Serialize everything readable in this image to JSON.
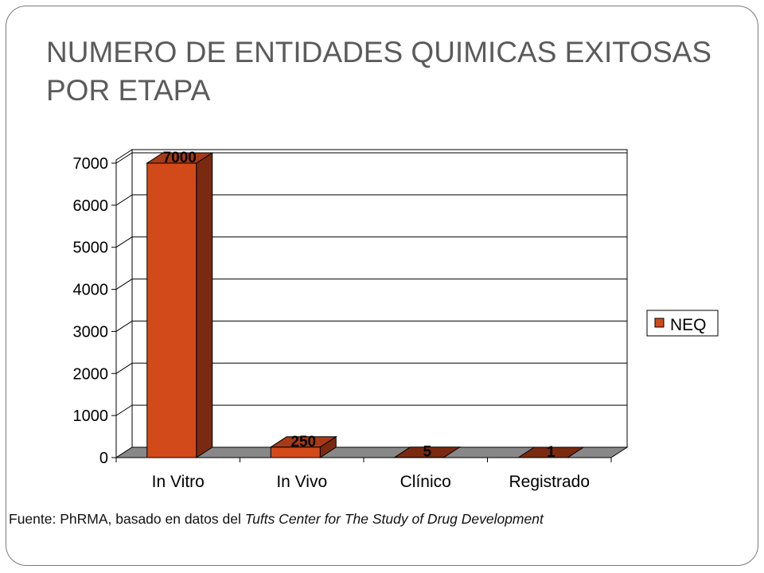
{
  "slide": {
    "title": "NUMERO DE ENTIDADES QUIMICAS EXITOSAS POR ETAPA"
  },
  "source": {
    "prefix": "Fuente:  PhRMA, basado en datos del ",
    "italic": "Tufts Center for The Study of Drug Development"
  },
  "chart_data": {
    "type": "bar",
    "title": "",
    "xlabel": "",
    "ylabel": "",
    "categories": [
      "In Vitro",
      "In Vivo",
      "Clínico",
      "Registrado"
    ],
    "series": [
      {
        "name": "NEQ",
        "values": [
          7000,
          250,
          5,
          1
        ],
        "labels": [
          "7000",
          "250",
          "5",
          "1"
        ]
      }
    ],
    "ylim": [
      0,
      7000
    ],
    "yticks": [
      0,
      1000,
      2000,
      3000,
      4000,
      5000,
      6000,
      7000
    ],
    "grid": true,
    "legend_position": "right",
    "style": "3d",
    "colors": {
      "bar_front": "#d24a1a",
      "bar_side": "#7a2a10",
      "bar_top": "#a83a16",
      "floor": "#888888",
      "gridline": "#000000"
    }
  }
}
